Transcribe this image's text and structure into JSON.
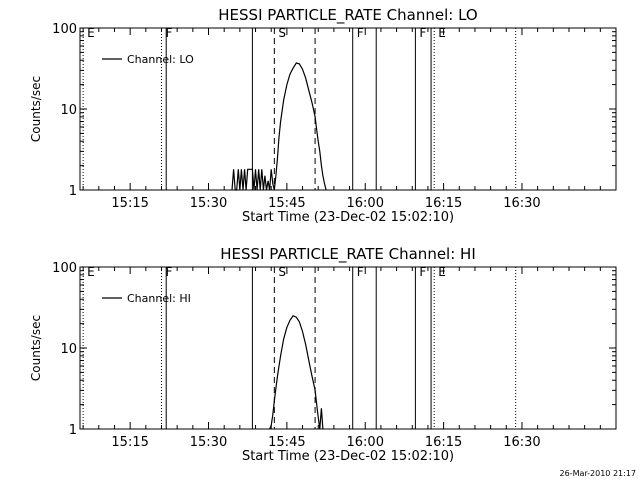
{
  "footer_text": "26-Mar-2010 21:17",
  "chart_data": [
    {
      "type": "line",
      "title": "HESSI PARTICLE_RATE Channel: LO",
      "xlabel": "Start Time (23-Dec-02 15:02:10)",
      "ylabel": "Counts/sec",
      "y_scale": "log",
      "ylim": [
        1,
        100
      ],
      "yticks": [
        {
          "v": 1,
          "label": "1"
        },
        {
          "v": 10,
          "label": "10"
        },
        {
          "v": 100,
          "label": "100"
        }
      ],
      "xlim": [
        15.09,
        16.8
      ],
      "xticks": [
        {
          "v": 15.25,
          "label": "15:15"
        },
        {
          "v": 15.5,
          "label": "15:30"
        },
        {
          "v": 15.75,
          "label": "15:45"
        },
        {
          "v": 16.0,
          "label": "16:00"
        },
        {
          "v": 16.25,
          "label": "16:15"
        },
        {
          "v": 16.5,
          "label": "16:30"
        }
      ],
      "legend": {
        "label": "Channel: LO",
        "position": "top-left"
      },
      "grid": false,
      "markers": [
        {
          "x": 15.1,
          "label": "E",
          "style": "dotted"
        },
        {
          "x": 15.35,
          "label": "F",
          "style": "dotted"
        },
        {
          "x": 15.365,
          "label": "",
          "style": "solid"
        },
        {
          "x": 15.64,
          "label": "",
          "style": "solid"
        },
        {
          "x": 15.71,
          "label": "S",
          "style": "dashed"
        },
        {
          "x": 15.84,
          "label": "",
          "style": "dashed"
        },
        {
          "x": 15.96,
          "label": "F",
          "style": "solid"
        },
        {
          "x": 16.035,
          "label": "",
          "style": "solid"
        },
        {
          "x": 16.16,
          "label": "F",
          "style": "solid"
        },
        {
          "x": 16.21,
          "label": "",
          "style": "solid"
        },
        {
          "x": 16.22,
          "label": "E",
          "style": "dotted"
        },
        {
          "x": 16.48,
          "label": "",
          "style": "dotted"
        }
      ],
      "series": [
        {
          "x": [
            15.575,
            15.58,
            15.585,
            15.59,
            15.595,
            15.6,
            15.605,
            15.61,
            15.615,
            15.62,
            15.625,
            15.63,
            15.635,
            15.64,
            15.645,
            15.65,
            15.655,
            15.66,
            15.665,
            15.67,
            15.675,
            15.68,
            15.685,
            15.69,
            15.695,
            15.7,
            15.705,
            15.71,
            15.715,
            15.72,
            15.725,
            15.73,
            15.74,
            15.75,
            15.76,
            15.77,
            15.78,
            15.79,
            15.8,
            15.81,
            15.82,
            15.83,
            15.84,
            15.845,
            15.85,
            15.855,
            15.86,
            15.865,
            15.87,
            15.875
          ],
          "y": [
            1,
            1.8,
            1,
            1,
            1.8,
            1,
            1.8,
            1,
            1.8,
            1,
            1.8,
            1.8,
            1.8,
            1.8,
            1,
            1.8,
            1,
            1.8,
            1,
            1.8,
            1,
            1.5,
            1,
            1.3,
            1,
            1.8,
            1.2,
            1,
            1.5,
            2.5,
            4.5,
            7,
            13,
            20,
            27,
            32,
            37,
            36,
            31,
            24,
            17,
            12,
            8,
            5.5,
            4,
            3,
            2,
            1.5,
            1.2,
            1
          ]
        }
      ]
    },
    {
      "type": "line",
      "title": "HESSI PARTICLE_RATE Channel: HI",
      "xlabel": "Start Time (23-Dec-02 15:02:10)",
      "ylabel": "Counts/sec",
      "y_scale": "log",
      "ylim": [
        1,
        100
      ],
      "yticks": [
        {
          "v": 1,
          "label": "1"
        },
        {
          "v": 10,
          "label": "10"
        },
        {
          "v": 100,
          "label": "100"
        }
      ],
      "xlim": [
        15.09,
        16.8
      ],
      "xticks": [
        {
          "v": 15.25,
          "label": "15:15"
        },
        {
          "v": 15.5,
          "label": "15:30"
        },
        {
          "v": 15.75,
          "label": "15:45"
        },
        {
          "v": 16.0,
          "label": "16:00"
        },
        {
          "v": 16.25,
          "label": "16:15"
        },
        {
          "v": 16.5,
          "label": "16:30"
        }
      ],
      "legend": {
        "label": "Channel: HI",
        "position": "top-left"
      },
      "grid": false,
      "markers": [
        {
          "x": 15.1,
          "label": "E",
          "style": "dotted"
        },
        {
          "x": 15.35,
          "label": "F",
          "style": "dotted"
        },
        {
          "x": 15.365,
          "label": "",
          "style": "solid"
        },
        {
          "x": 15.64,
          "label": "",
          "style": "solid"
        },
        {
          "x": 15.71,
          "label": "S",
          "style": "dashed"
        },
        {
          "x": 15.84,
          "label": "",
          "style": "dashed"
        },
        {
          "x": 15.96,
          "label": "F",
          "style": "solid"
        },
        {
          "x": 16.035,
          "label": "",
          "style": "solid"
        },
        {
          "x": 16.16,
          "label": "F",
          "style": "solid"
        },
        {
          "x": 16.21,
          "label": "",
          "style": "solid"
        },
        {
          "x": 16.22,
          "label": "E",
          "style": "dotted"
        },
        {
          "x": 16.48,
          "label": "",
          "style": "dotted"
        }
      ],
      "series": [
        {
          "x": [
            15.695,
            15.7,
            15.705,
            15.71,
            15.715,
            15.72,
            15.725,
            15.73,
            15.74,
            15.75,
            15.76,
            15.77,
            15.78,
            15.79,
            15.8,
            15.81,
            15.82,
            15.83,
            15.84,
            15.845,
            15.85,
            15.855,
            15.86,
            15.865
          ],
          "y": [
            1,
            1.1,
            1.5,
            2.2,
            3.2,
            4.5,
            6,
            8,
            13,
            18,
            22,
            25,
            24,
            21,
            16,
            11,
            7,
            4.5,
            3,
            2,
            1.4,
            1,
            1.8,
            1
          ]
        }
      ]
    }
  ]
}
